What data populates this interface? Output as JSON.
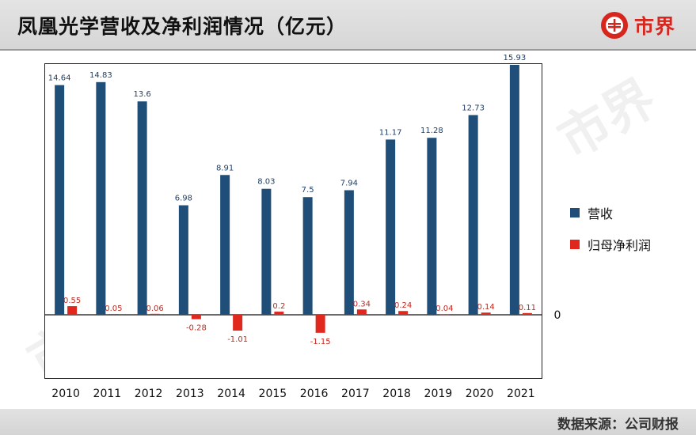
{
  "header": {
    "title": "凤凰光学营收及净利润情况（亿元）",
    "brand": "市界"
  },
  "footer": {
    "source": "数据来源：公司财报"
  },
  "watermark": "市界",
  "chart_data": {
    "type": "bar",
    "title": "凤凰光学营收及净利润情况（亿元）",
    "categories": [
      "2010",
      "2011",
      "2012",
      "2013",
      "2014",
      "2015",
      "2016",
      "2017",
      "2018",
      "2019",
      "2020",
      "2021"
    ],
    "series": [
      {
        "name": "营收",
        "color": "#1f4e79",
        "values": [
          14.64,
          14.83,
          13.6,
          6.98,
          8.91,
          8.03,
          7.5,
          7.94,
          11.17,
          11.28,
          12.73,
          15.93
        ]
      },
      {
        "name": "归母净利润",
        "color": "#e0281e",
        "values": [
          0.55,
          0.05,
          0.06,
          -0.28,
          -1.01,
          0.2,
          -1.15,
          0.34,
          0.24,
          0.04,
          0.14,
          0.11
        ]
      }
    ],
    "zero_label": "0",
    "ylim": [
      -4.3,
      16.0
    ],
    "grid": false,
    "legend": "right"
  }
}
